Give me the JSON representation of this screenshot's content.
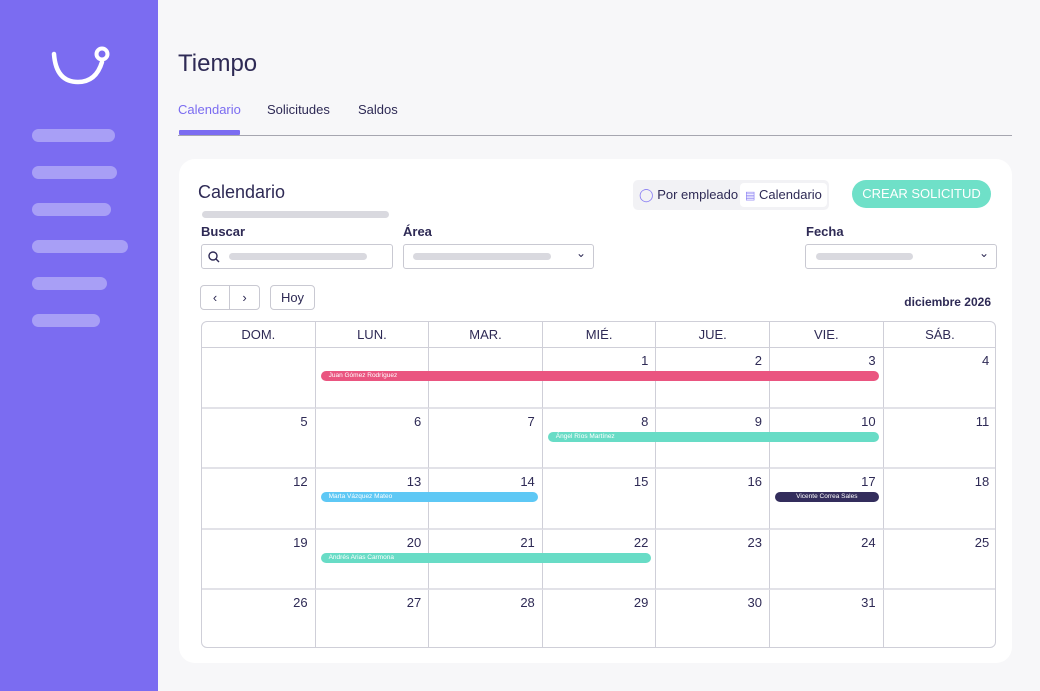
{
  "page": {
    "title": "Tiempo"
  },
  "tabs": [
    {
      "label": "Calendario",
      "active": true
    },
    {
      "label": "Solicitudes"
    },
    {
      "label": "Saldos"
    }
  ],
  "card": {
    "title": "Calendario",
    "view_toggle": [
      {
        "label": "Por empleado",
        "icon": "user-icon"
      },
      {
        "label": "Calendario",
        "icon": "calendar-icon",
        "selected": true
      }
    ],
    "create_label": "CREAR SOLICITUD",
    "filters": {
      "buscar": "Buscar",
      "area": "Área",
      "fecha": "Fecha"
    },
    "today_label": "Hoy",
    "month_label": "diciembre 2026"
  },
  "weekdays": [
    "DOM.",
    "LUN.",
    "MAR.",
    "MIÉ.",
    "JUE.",
    "VIE.",
    "SÁB."
  ],
  "weeks": [
    [
      "",
      "",
      "",
      "1",
      "2",
      "3",
      "4"
    ],
    [
      "5",
      "6",
      "7",
      "8",
      "9",
      "10",
      "11"
    ],
    [
      "12",
      "13",
      "14",
      "15",
      "16",
      "17",
      "18"
    ],
    [
      "19",
      "20",
      "21",
      "22",
      "23",
      "24",
      "25"
    ],
    [
      "26",
      "27",
      "28",
      "29",
      "30",
      "31",
      ""
    ]
  ],
  "events": [
    {
      "name": "Juan Gómez Rodríguez",
      "week": 0,
      "from": 1,
      "to": 5,
      "color": "#ea5580"
    },
    {
      "name": "Ángel Ríos Martínez",
      "week": 1,
      "from": 3,
      "to": 5,
      "color": "#68dcc6"
    },
    {
      "name": "Marta Vázquez Mateo",
      "week": 2,
      "from": 1,
      "to": 2,
      "color": "#5ec8f5"
    },
    {
      "name": "Vicente Correa Sales",
      "week": 2,
      "from": 5,
      "to": 5,
      "color": "#332d5c"
    },
    {
      "name": "Andrés Arias Carmona",
      "week": 3,
      "from": 1,
      "to": 3,
      "color": "#68dcc6"
    }
  ],
  "colors": {
    "sidebar": "#7b6cf1",
    "accent": "#7b6cf1",
    "create": "#6fe0c8"
  }
}
